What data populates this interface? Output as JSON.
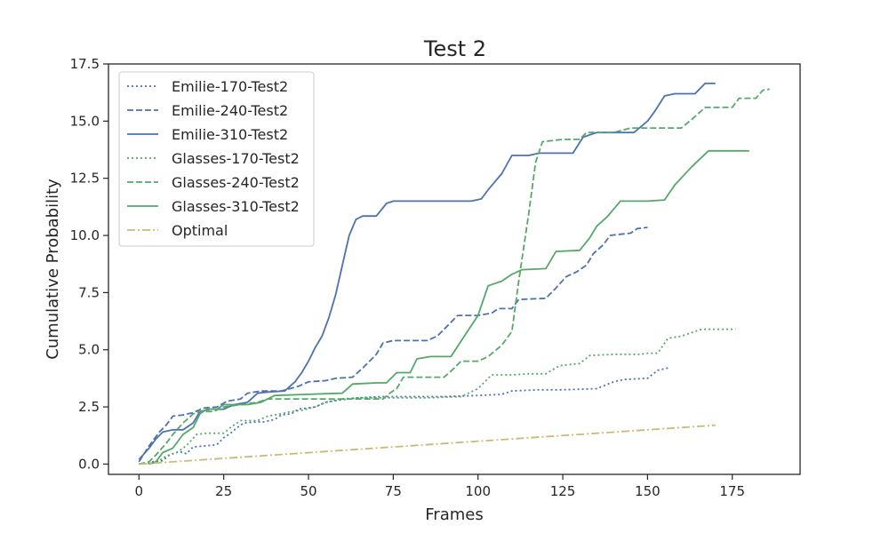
{
  "chart_data": {
    "type": "line",
    "title": "Test 2",
    "xlabel": "Frames",
    "ylabel": "Cumulative Probability",
    "xlim": [
      -9,
      195
    ],
    "ylim": [
      -0.45,
      17.5
    ],
    "xticks": [
      0,
      25,
      50,
      75,
      100,
      125,
      150,
      175
    ],
    "yticks": [
      0.0,
      2.5,
      5.0,
      7.5,
      10.0,
      12.5,
      15.0,
      17.5
    ],
    "ytick_labels": [
      "0.0",
      "2.5",
      "5.0",
      "7.5",
      "10.0",
      "12.5",
      "15.0",
      "17.5"
    ],
    "grid": false,
    "legend_position": "top-left",
    "series": [
      {
        "name": "Emilie-170-Test2",
        "color": "#4c72b0",
        "dash": "dotted",
        "points": [
          [
            0,
            0
          ],
          [
            4,
            0.1
          ],
          [
            7,
            0.15
          ],
          [
            9,
            0.4
          ],
          [
            12,
            0.55
          ],
          [
            14,
            0.45
          ],
          [
            16,
            0.75
          ],
          [
            20,
            0.8
          ],
          [
            23,
            0.85
          ],
          [
            25,
            1.15
          ],
          [
            27,
            1.35
          ],
          [
            29,
            1.6
          ],
          [
            31,
            1.8
          ],
          [
            35,
            1.85
          ],
          [
            37,
            1.85
          ],
          [
            40,
            1.95
          ],
          [
            42,
            2.15
          ],
          [
            45,
            2.2
          ],
          [
            47,
            2.4
          ],
          [
            52,
            2.5
          ],
          [
            55,
            2.7
          ],
          [
            60,
            2.85
          ],
          [
            65,
            2.9
          ],
          [
            72,
            2.95
          ],
          [
            80,
            2.95
          ],
          [
            90,
            2.95
          ],
          [
            100,
            3.0
          ],
          [
            107,
            3.05
          ],
          [
            110,
            3.2
          ],
          [
            118,
            3.25
          ],
          [
            125,
            3.25
          ],
          [
            135,
            3.3
          ],
          [
            140,
            3.6
          ],
          [
            143,
            3.7
          ],
          [
            150,
            3.75
          ],
          [
            153,
            4.1
          ],
          [
            156,
            4.2
          ]
        ]
      },
      {
        "name": "Emilie-240-Test2",
        "color": "#4c72b0",
        "dash": "dashed",
        "points": [
          [
            0,
            0.1
          ],
          [
            3,
            0.8
          ],
          [
            6,
            1.4
          ],
          [
            8,
            1.7
          ],
          [
            10,
            2.1
          ],
          [
            13,
            2.15
          ],
          [
            16,
            2.25
          ],
          [
            19,
            2.45
          ],
          [
            23,
            2.5
          ],
          [
            26,
            2.75
          ],
          [
            30,
            2.85
          ],
          [
            32,
            3.1
          ],
          [
            36,
            3.2
          ],
          [
            42,
            3.2
          ],
          [
            47,
            3.4
          ],
          [
            50,
            3.6
          ],
          [
            55,
            3.65
          ],
          [
            58,
            3.75
          ],
          [
            63,
            3.8
          ],
          [
            66,
            4.2
          ],
          [
            70,
            4.8
          ],
          [
            72,
            5.3
          ],
          [
            75,
            5.4
          ],
          [
            85,
            5.4
          ],
          [
            88,
            5.6
          ],
          [
            90,
            5.9
          ],
          [
            94,
            6.5
          ],
          [
            100,
            6.5
          ],
          [
            104,
            6.6
          ],
          [
            106,
            6.8
          ],
          [
            110,
            6.8
          ],
          [
            112,
            7.2
          ],
          [
            120,
            7.25
          ],
          [
            123,
            7.7
          ],
          [
            126,
            8.2
          ],
          [
            129,
            8.4
          ],
          [
            132,
            8.7
          ],
          [
            134,
            9.2
          ],
          [
            137,
            9.6
          ],
          [
            139,
            10.0
          ],
          [
            142,
            10.05
          ],
          [
            145,
            10.1
          ],
          [
            147,
            10.3
          ],
          [
            150,
            10.35
          ]
        ]
      },
      {
        "name": "Emilie-310-Test2",
        "color": "#4c72b0",
        "dash": "solid",
        "points": [
          [
            0,
            0.2
          ],
          [
            3,
            0.7
          ],
          [
            5,
            1.1
          ],
          [
            7,
            1.4
          ],
          [
            10,
            1.5
          ],
          [
            13,
            1.5
          ],
          [
            16,
            1.8
          ],
          [
            18,
            2.3
          ],
          [
            21,
            2.4
          ],
          [
            25,
            2.4
          ],
          [
            28,
            2.6
          ],
          [
            32,
            2.7
          ],
          [
            35,
            3.1
          ],
          [
            38,
            3.15
          ],
          [
            43,
            3.2
          ],
          [
            46,
            3.6
          ],
          [
            48,
            4.0
          ],
          [
            50,
            4.5
          ],
          [
            52,
            5.1
          ],
          [
            54,
            5.6
          ],
          [
            56,
            6.4
          ],
          [
            58,
            7.4
          ],
          [
            60,
            8.7
          ],
          [
            62,
            10.0
          ],
          [
            64,
            10.7
          ],
          [
            66,
            10.85
          ],
          [
            70,
            10.85
          ],
          [
            73,
            11.4
          ],
          [
            75,
            11.5
          ],
          [
            80,
            11.5
          ],
          [
            90,
            11.5
          ],
          [
            98,
            11.5
          ],
          [
            101,
            11.6
          ],
          [
            103,
            12.0
          ],
          [
            107,
            12.7
          ],
          [
            110,
            13.5
          ],
          [
            115,
            13.5
          ],
          [
            118,
            13.6
          ],
          [
            120,
            13.6
          ],
          [
            128,
            13.6
          ],
          [
            131,
            14.3
          ],
          [
            135,
            14.5
          ],
          [
            146,
            14.5
          ],
          [
            150,
            15.0
          ],
          [
            152,
            15.4
          ],
          [
            155,
            16.1
          ],
          [
            158,
            16.2
          ],
          [
            164,
            16.2
          ],
          [
            167,
            16.65
          ],
          [
            170,
            16.65
          ]
        ]
      },
      {
        "name": "Glasses-170-Test2",
        "color": "#55a868",
        "dash": "dotted",
        "points": [
          [
            0,
            0
          ],
          [
            5,
            0.05
          ],
          [
            8,
            0.35
          ],
          [
            11,
            0.5
          ],
          [
            14,
            0.8
          ],
          [
            17,
            1.3
          ],
          [
            20,
            1.35
          ],
          [
            25,
            1.35
          ],
          [
            27,
            1.6
          ],
          [
            30,
            1.9
          ],
          [
            35,
            1.9
          ],
          [
            38,
            2.1
          ],
          [
            42,
            2.2
          ],
          [
            45,
            2.3
          ],
          [
            48,
            2.35
          ],
          [
            52,
            2.5
          ],
          [
            55,
            2.7
          ],
          [
            59,
            2.8
          ],
          [
            65,
            2.9
          ],
          [
            75,
            2.9
          ],
          [
            85,
            2.9
          ],
          [
            95,
            2.95
          ],
          [
            100,
            3.3
          ],
          [
            104,
            3.9
          ],
          [
            110,
            3.9
          ],
          [
            115,
            3.95
          ],
          [
            120,
            3.95
          ],
          [
            124,
            4.3
          ],
          [
            130,
            4.4
          ],
          [
            133,
            4.75
          ],
          [
            140,
            4.8
          ],
          [
            148,
            4.8
          ],
          [
            150,
            4.85
          ],
          [
            153,
            4.85
          ],
          [
            156,
            5.5
          ],
          [
            160,
            5.6
          ],
          [
            166,
            5.9
          ],
          [
            176,
            5.9
          ]
        ]
      },
      {
        "name": "Glasses-240-Test2",
        "color": "#55a868",
        "dash": "dashed",
        "points": [
          [
            0,
            0
          ],
          [
            3,
            0.1
          ],
          [
            5,
            0.4
          ],
          [
            8,
            0.9
          ],
          [
            10,
            1.3
          ],
          [
            13,
            1.8
          ],
          [
            16,
            2.2
          ],
          [
            18,
            2.3
          ],
          [
            22,
            2.3
          ],
          [
            25,
            2.5
          ],
          [
            30,
            2.6
          ],
          [
            35,
            2.7
          ],
          [
            38,
            2.85
          ],
          [
            45,
            2.85
          ],
          [
            55,
            2.85
          ],
          [
            62,
            2.85
          ],
          [
            72,
            2.85
          ],
          [
            74,
            3.1
          ],
          [
            76,
            3.3
          ],
          [
            78,
            3.8
          ],
          [
            90,
            3.8
          ],
          [
            93,
            4.2
          ],
          [
            95,
            4.5
          ],
          [
            100,
            4.5
          ],
          [
            103,
            4.7
          ],
          [
            107,
            5.2
          ],
          [
            110,
            5.8
          ],
          [
            112,
            8.0
          ],
          [
            115,
            11.0
          ],
          [
            117,
            13.2
          ],
          [
            119,
            14.1
          ],
          [
            125,
            14.2
          ],
          [
            130,
            14.2
          ],
          [
            132,
            14.5
          ],
          [
            140,
            14.5
          ],
          [
            145,
            14.7
          ],
          [
            160,
            14.7
          ],
          [
            164,
            15.2
          ],
          [
            167,
            15.6
          ],
          [
            175,
            15.6
          ],
          [
            177,
            16.0
          ],
          [
            182,
            16.0
          ],
          [
            184,
            16.35
          ],
          [
            186,
            16.4
          ]
        ]
      },
      {
        "name": "Glasses-310-Test2",
        "color": "#55a868",
        "dash": "solid",
        "points": [
          [
            3,
            0
          ],
          [
            5,
            0.1
          ],
          [
            7,
            0.5
          ],
          [
            10,
            0.7
          ],
          [
            13,
            1.3
          ],
          [
            16,
            1.6
          ],
          [
            18,
            2.2
          ],
          [
            20,
            2.4
          ],
          [
            23,
            2.4
          ],
          [
            25,
            2.6
          ],
          [
            32,
            2.6
          ],
          [
            36,
            2.7
          ],
          [
            40,
            3.0
          ],
          [
            50,
            3.05
          ],
          [
            60,
            3.1
          ],
          [
            63,
            3.5
          ],
          [
            70,
            3.55
          ],
          [
            73,
            3.55
          ],
          [
            76,
            4.0
          ],
          [
            80,
            4.0
          ],
          [
            82,
            4.6
          ],
          [
            86,
            4.7
          ],
          [
            92,
            4.7
          ],
          [
            96,
            5.6
          ],
          [
            100,
            6.5
          ],
          [
            103,
            7.8
          ],
          [
            107,
            8.0
          ],
          [
            110,
            8.3
          ],
          [
            113,
            8.5
          ],
          [
            120,
            8.55
          ],
          [
            123,
            9.3
          ],
          [
            130,
            9.35
          ],
          [
            133,
            9.9
          ],
          [
            135,
            10.4
          ],
          [
            138,
            10.8
          ],
          [
            142,
            11.5
          ],
          [
            150,
            11.5
          ],
          [
            155,
            11.55
          ],
          [
            158,
            12.2
          ],
          [
            163,
            13.0
          ],
          [
            168,
            13.7
          ],
          [
            180,
            13.7
          ]
        ]
      },
      {
        "name": "Optimal",
        "color": "#ccb974",
        "dash": "dashdot",
        "points": [
          [
            0,
            0
          ],
          [
            170,
            1.7
          ]
        ]
      }
    ]
  }
}
